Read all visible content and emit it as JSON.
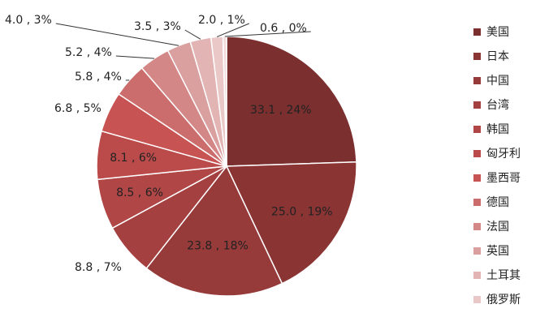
{
  "chart_data": {
    "type": "pie",
    "title": "",
    "legend_position": "right",
    "slices": [
      {
        "name": "美国",
        "value": 33.1,
        "percent": "24%",
        "label": "33.1 , 24%",
        "color": "#7b2f2f"
      },
      {
        "name": "日本",
        "value": 25.0,
        "percent": "19%",
        "label": "25.0 , 19%",
        "color": "#8b3434"
      },
      {
        "name": "中国",
        "value": 23.8,
        "percent": "18%",
        "label": "23.8 , 18%",
        "color": "#963a3a"
      },
      {
        "name": "台湾",
        "value": 8.8,
        "percent": "7%",
        "label": "8.8 , 7%",
        "color": "#a54040"
      },
      {
        "name": "韩国",
        "value": 8.5,
        "percent": "6%",
        "label": "8.5 , 6%",
        "color": "#b04646"
      },
      {
        "name": "匈牙利",
        "value": 8.1,
        "percent": "6%",
        "label": "8.1 , 6%",
        "color": "#bb4b4b"
      },
      {
        "name": "墨西哥",
        "value": 6.8,
        "percent": "5%",
        "label": "6.8 , 5%",
        "color": "#c75353"
      },
      {
        "name": "德国",
        "value": 5.8,
        "percent": "4%",
        "label": "5.8 , 4%",
        "color": "#cc6d6d"
      },
      {
        "name": "法国",
        "value": 5.2,
        "percent": "4%",
        "label": "5.2 , 4%",
        "color": "#d48787"
      },
      {
        "name": "英国",
        "value": 4.0,
        "percent": "3%",
        "label": "4.0 , 3%",
        "color": "#daa0a0"
      },
      {
        "name": "土耳其",
        "value": 3.5,
        "percent": "3%",
        "label": "3.5 , 3%",
        "color": "#e2b4b4"
      },
      {
        "name": "俄罗斯",
        "value": 2.0,
        "percent": "1%",
        "label": "2.0 , 1%",
        "color": "#eac8c8"
      },
      {
        "name": "",
        "value": 0.6,
        "percent": "0%",
        "label": "0.6 , 0%",
        "color": "#f2dada"
      }
    ]
  }
}
